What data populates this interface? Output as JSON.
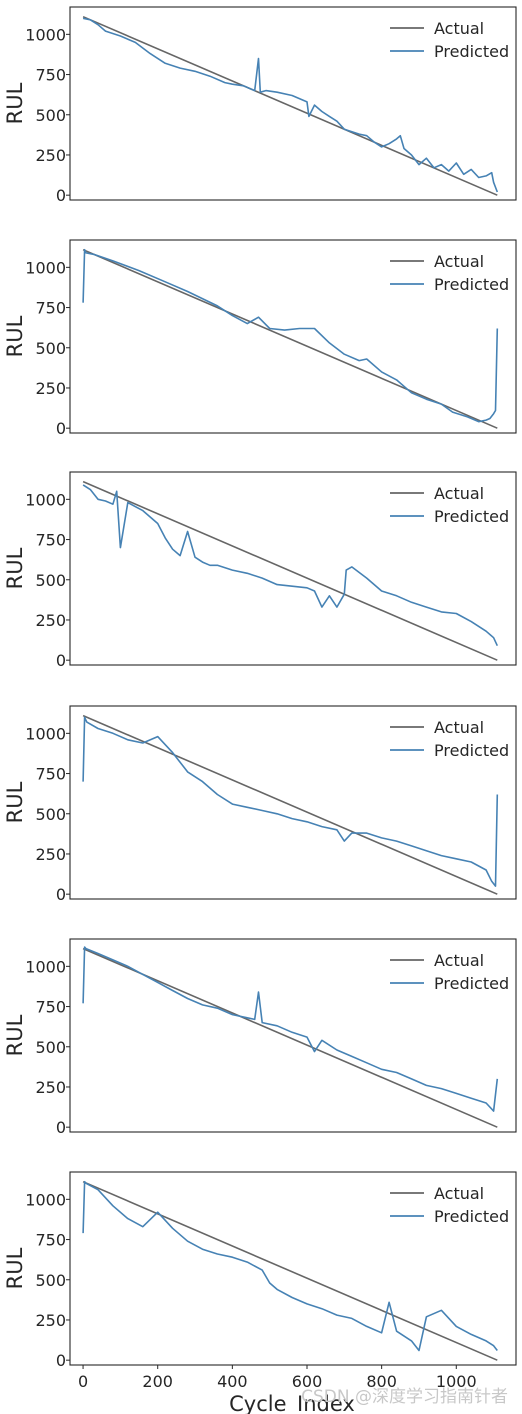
{
  "xlabel": "Cycle_Index",
  "watermark": "CSDN @深度学习指南针者",
  "chart_data": [
    {
      "type": "line",
      "ylabel": "RUL",
      "legend": "top-right",
      "grid": false,
      "xlim": [
        -35,
        1160
      ],
      "ylim": [
        -30,
        1170
      ],
      "xticks": [
        0,
        200,
        400,
        600,
        800,
        1000
      ],
      "yticks": [
        0,
        250,
        500,
        750,
        1000
      ],
      "series": [
        {
          "name": "Actual",
          "color": "#666666",
          "x": [
            0,
            1110
          ],
          "y": [
            1110,
            0
          ]
        },
        {
          "name": "Predicted",
          "color": "#4682b4",
          "x": [
            0,
            20,
            40,
            60,
            100,
            140,
            180,
            220,
            260,
            300,
            340,
            380,
            400,
            430,
            460,
            470,
            475,
            490,
            520,
            560,
            600,
            605,
            620,
            640,
            660,
            680,
            700,
            740,
            760,
            780,
            800,
            820,
            840,
            850,
            860,
            880,
            900,
            920,
            940,
            960,
            980,
            1000,
            1020,
            1040,
            1060,
            1080,
            1095,
            1100,
            1110
          ],
          "y": [
            1100,
            1090,
            1060,
            1020,
            990,
            950,
            880,
            820,
            790,
            770,
            740,
            700,
            690,
            680,
            650,
            850,
            640,
            650,
            640,
            620,
            580,
            490,
            560,
            520,
            490,
            460,
            410,
            380,
            370,
            330,
            300,
            320,
            350,
            370,
            290,
            250,
            190,
            230,
            170,
            190,
            150,
            200,
            130,
            160,
            110,
            120,
            140,
            80,
            20
          ]
        }
      ]
    },
    {
      "type": "line",
      "ylabel": "RUL",
      "legend": "top-right",
      "grid": false,
      "xlim": [
        -35,
        1160
      ],
      "ylim": [
        -30,
        1170
      ],
      "xticks": [
        0,
        200,
        400,
        600,
        800,
        1000
      ],
      "yticks": [
        0,
        250,
        500,
        750,
        1000
      ],
      "series": [
        {
          "name": "Actual",
          "color": "#666666",
          "x": [
            0,
            1110
          ],
          "y": [
            1110,
            0
          ]
        },
        {
          "name": "Predicted",
          "color": "#4682b4",
          "x": [
            0,
            4,
            8,
            30,
            80,
            150,
            220,
            280,
            360,
            400,
            440,
            470,
            500,
            540,
            580,
            620,
            660,
            700,
            740,
            760,
            800,
            840,
            880,
            920,
            960,
            990,
            1030,
            1060,
            1080,
            1090,
            1100,
            1105,
            1110
          ],
          "y": [
            780,
            1110,
            1090,
            1080,
            1040,
            980,
            910,
            850,
            760,
            700,
            650,
            690,
            620,
            610,
            620,
            620,
            530,
            460,
            420,
            430,
            350,
            300,
            220,
            180,
            150,
            100,
            70,
            40,
            50,
            60,
            90,
            110,
            620
          ]
        }
      ]
    },
    {
      "type": "line",
      "ylabel": "RUL",
      "legend": "top-right",
      "grid": false,
      "xlim": [
        -35,
        1160
      ],
      "ylim": [
        -30,
        1170
      ],
      "xticks": [
        0,
        200,
        400,
        600,
        800,
        1000
      ],
      "yticks": [
        0,
        250,
        500,
        750,
        1000
      ],
      "series": [
        {
          "name": "Actual",
          "color": "#666666",
          "x": [
            0,
            1110
          ],
          "y": [
            1110,
            0
          ]
        },
        {
          "name": "Predicted",
          "color": "#4682b4",
          "x": [
            0,
            20,
            40,
            60,
            80,
            90,
            100,
            120,
            160,
            200,
            220,
            240,
            260,
            280,
            300,
            320,
            340,
            360,
            400,
            440,
            480,
            520,
            560,
            600,
            620,
            640,
            660,
            680,
            700,
            705,
            720,
            760,
            800,
            840,
            880,
            920,
            960,
            1000,
            1040,
            1080,
            1100,
            1110
          ],
          "y": [
            1090,
            1060,
            1000,
            990,
            970,
            1050,
            700,
            980,
            930,
            850,
            760,
            690,
            650,
            800,
            640,
            610,
            590,
            590,
            560,
            540,
            510,
            470,
            460,
            450,
            430,
            330,
            400,
            330,
            410,
            560,
            580,
            510,
            430,
            400,
            360,
            330,
            300,
            290,
            240,
            180,
            140,
            90
          ]
        }
      ]
    },
    {
      "type": "line",
      "ylabel": "RUL",
      "legend": "top-right",
      "grid": false,
      "xlim": [
        -35,
        1160
      ],
      "ylim": [
        -30,
        1170
      ],
      "xticks": [
        0,
        200,
        400,
        600,
        800,
        1000
      ],
      "yticks": [
        0,
        250,
        500,
        750,
        1000
      ],
      "series": [
        {
          "name": "Actual",
          "color": "#666666",
          "x": [
            0,
            1110
          ],
          "y": [
            1110,
            0
          ]
        },
        {
          "name": "Predicted",
          "color": "#4682b4",
          "x": [
            0,
            4,
            10,
            40,
            80,
            120,
            160,
            200,
            240,
            280,
            320,
            360,
            400,
            440,
            480,
            520,
            560,
            600,
            640,
            680,
            700,
            720,
            760,
            800,
            840,
            880,
            920,
            960,
            1000,
            1040,
            1080,
            1095,
            1105,
            1110
          ],
          "y": [
            700,
            1100,
            1070,
            1030,
            1000,
            960,
            940,
            980,
            880,
            760,
            700,
            620,
            560,
            540,
            520,
            500,
            470,
            450,
            420,
            400,
            330,
            380,
            380,
            350,
            330,
            300,
            270,
            240,
            220,
            200,
            150,
            80,
            50,
            620
          ]
        }
      ]
    },
    {
      "type": "line",
      "ylabel": "RUL",
      "legend": "top-right",
      "grid": false,
      "xlim": [
        -35,
        1160
      ],
      "ylim": [
        -30,
        1170
      ],
      "xticks": [
        0,
        200,
        400,
        600,
        800,
        1000
      ],
      "yticks": [
        0,
        250,
        500,
        750,
        1000
      ],
      "series": [
        {
          "name": "Actual",
          "color": "#666666",
          "x": [
            0,
            1110
          ],
          "y": [
            1110,
            0
          ]
        },
        {
          "name": "Predicted",
          "color": "#4682b4",
          "x": [
            0,
            4,
            8,
            40,
            80,
            120,
            160,
            200,
            240,
            280,
            320,
            360,
            400,
            440,
            460,
            470,
            480,
            520,
            560,
            600,
            620,
            640,
            680,
            720,
            760,
            800,
            840,
            880,
            920,
            960,
            1000,
            1040,
            1080,
            1100,
            1110
          ],
          "y": [
            770,
            1120,
            1110,
            1080,
            1040,
            1000,
            950,
            900,
            850,
            800,
            760,
            740,
            700,
            680,
            670,
            840,
            650,
            630,
            590,
            560,
            470,
            540,
            480,
            440,
            400,
            360,
            340,
            300,
            260,
            240,
            210,
            180,
            150,
            100,
            300
          ]
        }
      ]
    },
    {
      "type": "line",
      "ylabel": "RUL",
      "legend": "top-right",
      "grid": false,
      "xlim": [
        -35,
        1160
      ],
      "ylim": [
        -30,
        1170
      ],
      "xticks": [
        0,
        200,
        400,
        600,
        800,
        1000
      ],
      "yticks": [
        0,
        250,
        500,
        750,
        1000
      ],
      "series": [
        {
          "name": "Actual",
          "color": "#666666",
          "x": [
            0,
            1110
          ],
          "y": [
            1110,
            0
          ]
        },
        {
          "name": "Predicted",
          "color": "#4682b4",
          "x": [
            0,
            4,
            8,
            40,
            80,
            120,
            160,
            200,
            240,
            280,
            320,
            360,
            400,
            440,
            480,
            500,
            520,
            560,
            600,
            640,
            680,
            720,
            760,
            800,
            820,
            840,
            880,
            900,
            920,
            960,
            1000,
            1040,
            1080,
            1100,
            1110
          ],
          "y": [
            790,
            1110,
            1100,
            1060,
            960,
            880,
            830,
            920,
            820,
            740,
            690,
            660,
            640,
            610,
            560,
            480,
            440,
            390,
            350,
            320,
            280,
            260,
            210,
            170,
            360,
            180,
            120,
            60,
            270,
            310,
            210,
            160,
            120,
            90,
            60
          ]
        }
      ]
    }
  ]
}
